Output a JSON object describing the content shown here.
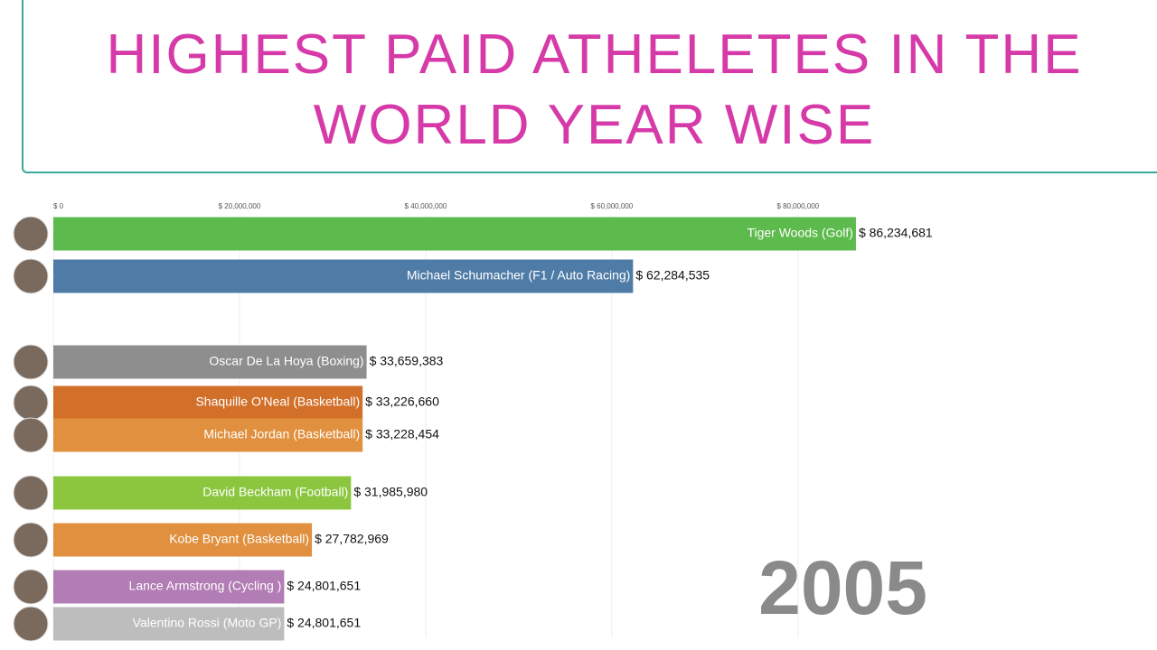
{
  "chart_data": {
    "type": "bar",
    "orientation": "horizontal",
    "title": "HIGHEST PAID ATHELETES IN THE WORLD YEAR WISE",
    "year": "2005",
    "categories": [
      "Tiger Woods (Golf)",
      "Michael Schumacher (F1 / Auto Racing)",
      "Oscar De La Hoya (Boxing)",
      "Shaquille O'Neal (Basketball)",
      "Michael Jordan (Basketball)",
      "David Beckham (Football)",
      "Kobe Bryant (Basketball)",
      "Lance Armstrong (Cycling )",
      "Valentino Rossi (Moto GP)"
    ],
    "values": [
      86234681,
      62284535,
      33659383,
      33226660,
      33228454,
      31985980,
      27782969,
      24801651,
      24801651
    ],
    "value_labels": [
      "$ 86,234,681",
      "$ 62,284,535",
      "$ 33,659,383",
      "$ 33,226,660",
      "$ 33,228,454",
      "$ 31,985,980",
      "$ 27,782,969",
      "$ 24,801,651",
      "$ 24,801,651"
    ],
    "colors": [
      "#5dba4c",
      "#4f7ca6",
      "#8e8e8e",
      "#d2702a",
      "#e0903e",
      "#8cc63f",
      "#e0903e",
      "#b27cb4",
      "#bdbdbd"
    ],
    "xlim": [
      0,
      94300000
    ],
    "xticks": [
      {
        "value": 0,
        "label": "$ 0"
      },
      {
        "value": 20000000,
        "label": "$ 20,000,000"
      },
      {
        "value": 40000000,
        "label": "$ 40,000,000"
      },
      {
        "value": 60000000,
        "label": "$ 60,000,000"
      },
      {
        "value": 80000000,
        "label": "$ 80,000,000"
      }
    ],
    "grid": true
  }
}
